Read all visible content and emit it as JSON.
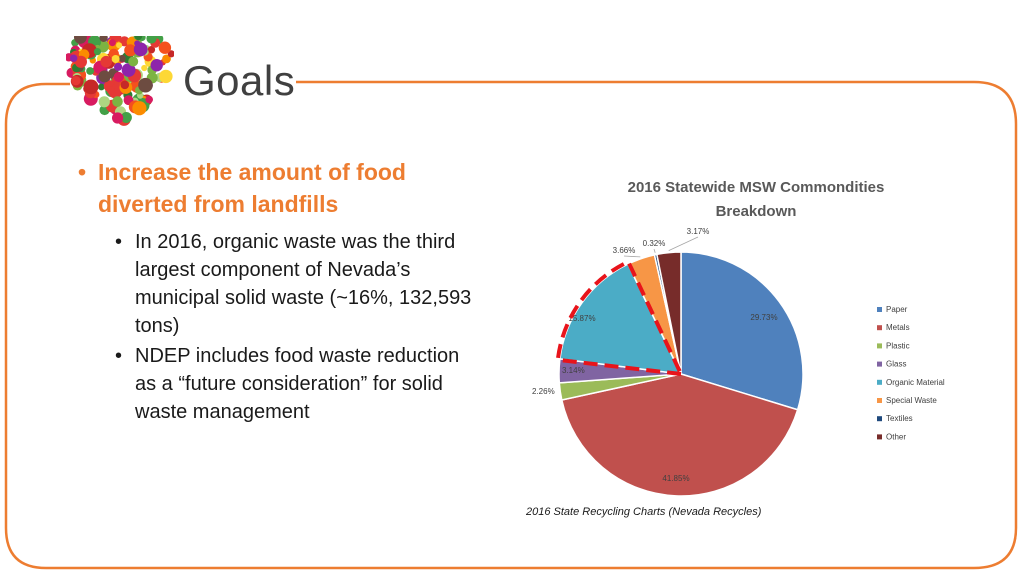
{
  "slide": {
    "title": "Goals",
    "bullet1": "Increase the amount of food diverted from landfills",
    "sub_bullets": [
      "In 2016, organic waste was the third largest component of Nevada’s municipal solid waste (~16%, 132,593 tons)",
      "NDEP includes food waste reduction as a “future consideration” for solid waste management"
    ],
    "caption": "2016 State Recycling Charts (Nevada Recycles)",
    "accent_color": "#ED7D31",
    "logo_icon": "fruit-vegetable-heart-icon"
  },
  "chart_data": {
    "type": "pie",
    "title": "2016 Statewide MSW Commondities Breakdown",
    "legend_position": "right",
    "slices": [
      {
        "name": "Paper",
        "value": 29.73,
        "label": "29.73%",
        "color": "#4F81BD"
      },
      {
        "name": "Metals",
        "value": 41.85,
        "label": "41.85%",
        "color": "#C0504D"
      },
      {
        "name": "Plastic",
        "value": 2.26,
        "label": "2.26%",
        "color": "#9BBB59"
      },
      {
        "name": "Glass",
        "value": 3.14,
        "label": "3.14%",
        "color": "#8064A2"
      },
      {
        "name": "Organic Material",
        "value": 15.87,
        "label": "15.87%",
        "color": "#4BACC6"
      },
      {
        "name": "Special Waste",
        "value": 3.66,
        "label": "3.66%",
        "color": "#F79646"
      },
      {
        "name": "Textiles",
        "value": 0.32,
        "label": "0.32%",
        "color": "#1F497D"
      },
      {
        "name": "Other",
        "value": 3.17,
        "label": "3.17%",
        "color": "#772C2A"
      }
    ],
    "highlighted": "Organic Material",
    "highlight_color": "#E8141B"
  }
}
